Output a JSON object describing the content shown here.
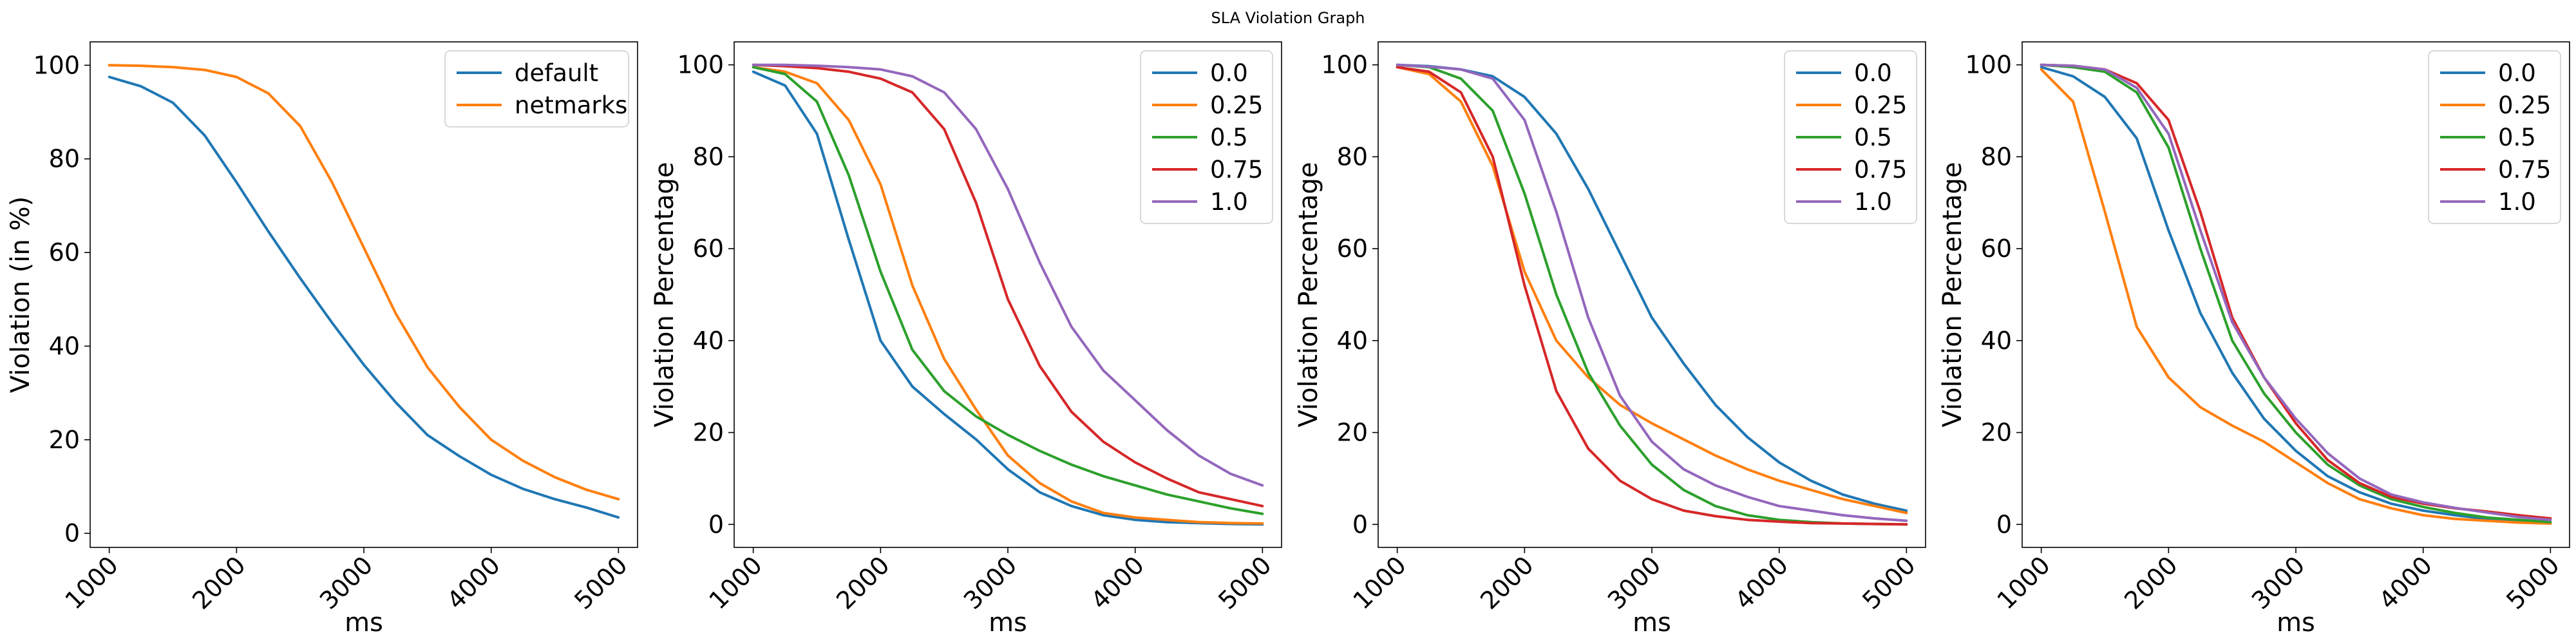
{
  "figure": {
    "title": "SLA Violation Graph"
  },
  "chart_data": [
    {
      "type": "line",
      "title": "",
      "xlabel": "ms",
      "ylabel": "Violation (in %)",
      "xlim": [
        850,
        5150
      ],
      "ylim": [
        -3,
        105
      ],
      "xticks": [
        1000,
        2000,
        3000,
        4000,
        5000
      ],
      "yticks": [
        0,
        20,
        40,
        60,
        80,
        100
      ],
      "grid": false,
      "legend": "top-right",
      "x": [
        1000,
        1250,
        1500,
        1750,
        2000,
        2250,
        2500,
        2750,
        3000,
        3250,
        3500,
        3750,
        4000,
        4250,
        4500,
        4750,
        5000
      ],
      "series": [
        {
          "name": "default",
          "color": "#1f77b4",
          "values": [
            97.5,
            95.5,
            92,
            85,
            75,
            64.5,
            54.5,
            45,
            36,
            28,
            21,
            16.5,
            12.5,
            9.5,
            7.3,
            5.5,
            3.4
          ]
        },
        {
          "name": "netmarks",
          "color": "#ff7f0e",
          "values": [
            100,
            99.9,
            99.6,
            99,
            97.5,
            94,
            87,
            75,
            61,
            47,
            35.5,
            27,
            20,
            15.5,
            12,
            9.3,
            7.3
          ]
        }
      ]
    },
    {
      "type": "line",
      "title": "",
      "xlabel": "ms",
      "ylabel": "Violation Percentage",
      "xlim": [
        850,
        5150
      ],
      "ylim": [
        -5,
        105
      ],
      "xticks": [
        1000,
        2000,
        3000,
        4000,
        5000
      ],
      "yticks": [
        0,
        20,
        40,
        60,
        80,
        100
      ],
      "grid": false,
      "legend": "top-right",
      "x": [
        1000,
        1250,
        1500,
        1750,
        2000,
        2250,
        2500,
        2750,
        3000,
        3250,
        3500,
        3750,
        4000,
        4250,
        4500,
        4750,
        5000
      ],
      "series": [
        {
          "name": "0.0",
          "color": "#1f77b4",
          "values": [
            98.5,
            95.5,
            85,
            62,
            40,
            30,
            24,
            18.5,
            12,
            7,
            4,
            2,
            1,
            0.5,
            0.3,
            0.1,
            0
          ]
        },
        {
          "name": "0.25",
          "color": "#ff7f0e",
          "values": [
            99.5,
            98.5,
            96,
            88,
            74,
            52,
            36,
            25,
            15,
            9,
            5,
            2.5,
            1.5,
            1,
            0.5,
            0.3,
            0.2
          ]
        },
        {
          "name": "0.5",
          "color": "#2ca02c",
          "values": [
            99.5,
            98,
            92,
            76,
            55,
            38,
            29,
            23.5,
            19.5,
            16,
            13,
            10.5,
            8.5,
            6.5,
            5,
            3.5,
            2.3
          ]
        },
        {
          "name": "0.75",
          "color": "#d62728",
          "values": [
            100,
            99.7,
            99.3,
            98.5,
            97,
            94,
            86,
            70,
            49,
            34.5,
            24.5,
            18,
            13.5,
            10,
            7,
            5.5,
            4
          ]
        },
        {
          "name": "1.0",
          "color": "#9467bd",
          "values": [
            100,
            100,
            99.8,
            99.5,
            99,
            97.5,
            94,
            86,
            73,
            57,
            43,
            33.5,
            27,
            20.5,
            15,
            11,
            8.5
          ]
        }
      ]
    },
    {
      "type": "line",
      "title": "",
      "xlabel": "ms",
      "ylabel": "Violation Percentage",
      "xlim": [
        850,
        5150
      ],
      "ylim": [
        -5,
        105
      ],
      "xticks": [
        1000,
        2000,
        3000,
        4000,
        5000
      ],
      "yticks": [
        0,
        20,
        40,
        60,
        80,
        100
      ],
      "grid": false,
      "legend": "top-right",
      "x": [
        1000,
        1250,
        1500,
        1750,
        2000,
        2250,
        2500,
        2750,
        3000,
        3250,
        3500,
        3750,
        4000,
        4250,
        4500,
        4750,
        5000
      ],
      "series": [
        {
          "name": "0.0",
          "color": "#1f77b4",
          "values": [
            100,
            99.7,
            99,
            97.5,
            93,
            85,
            73,
            59,
            45,
            35,
            26,
            19,
            13.5,
            9.5,
            6.5,
            4.5,
            3
          ]
        },
        {
          "name": "0.25",
          "color": "#ff7f0e",
          "values": [
            99.5,
            98,
            92,
            78,
            55,
            40,
            32,
            26,
            22,
            18.5,
            15,
            12,
            9.5,
            7.5,
            5.5,
            4,
            2.5
          ]
        },
        {
          "name": "0.5",
          "color": "#2ca02c",
          "values": [
            100,
            99.5,
            97,
            90,
            72,
            50,
            33,
            21.5,
            13,
            7.5,
            4,
            2,
            1,
            0.5,
            0.2,
            0.1,
            0
          ]
        },
        {
          "name": "0.75",
          "color": "#d62728",
          "values": [
            99.5,
            98.5,
            94,
            80,
            52,
            29,
            16.5,
            9.5,
            5.5,
            3,
            1.8,
            1,
            0.6,
            0.3,
            0.2,
            0.1,
            0
          ]
        },
        {
          "name": "1.0",
          "color": "#9467bd",
          "values": [
            100,
            99.6,
            99,
            97,
            88,
            68,
            45,
            28,
            18,
            12,
            8.5,
            6,
            4,
            3,
            2,
            1.3,
            0.8
          ]
        }
      ]
    },
    {
      "type": "line",
      "title": "",
      "xlabel": "ms",
      "ylabel": "Violation Percentage",
      "xlim": [
        850,
        5150
      ],
      "ylim": [
        -5,
        105
      ],
      "xticks": [
        1000,
        2000,
        3000,
        4000,
        5000
      ],
      "yticks": [
        0,
        20,
        40,
        60,
        80,
        100
      ],
      "grid": false,
      "legend": "top-right",
      "x": [
        1000,
        1250,
        1500,
        1750,
        2000,
        2250,
        2500,
        2750,
        3000,
        3250,
        3500,
        3750,
        4000,
        4250,
        4500,
        4750,
        5000
      ],
      "series": [
        {
          "name": "0.0",
          "color": "#1f77b4",
          "values": [
            99.5,
            97.5,
            93,
            84,
            64,
            46,
            33,
            23,
            16,
            10.5,
            7,
            4.5,
            3,
            2,
            1.2,
            0.7,
            0.4
          ]
        },
        {
          "name": "0.25",
          "color": "#ff7f0e",
          "values": [
            99,
            92,
            68,
            43,
            32,
            25.5,
            21.5,
            18,
            13.5,
            9,
            5.5,
            3.5,
            2,
            1.2,
            0.8,
            0.4,
            0.2
          ]
        },
        {
          "name": "0.5",
          "color": "#2ca02c",
          "values": [
            100,
            99.5,
            98.5,
            94,
            82,
            60,
            40,
            28.5,
            20,
            13,
            8.5,
            5.5,
            3.8,
            2.5,
            1.5,
            1,
            0.5
          ]
        },
        {
          "name": "0.75",
          "color": "#d62728",
          "values": [
            100,
            99.8,
            99,
            96,
            88,
            68,
            45,
            32,
            22,
            14,
            9,
            6,
            4.5,
            3.5,
            2.8,
            2,
            1.3
          ]
        },
        {
          "name": "1.0",
          "color": "#9467bd",
          "values": [
            100,
            99.8,
            99,
            95,
            85,
            64,
            44,
            32,
            23,
            15.5,
            10,
            6.5,
            4.8,
            3.6,
            2.6,
            1.6,
            1
          ]
        }
      ]
    }
  ]
}
